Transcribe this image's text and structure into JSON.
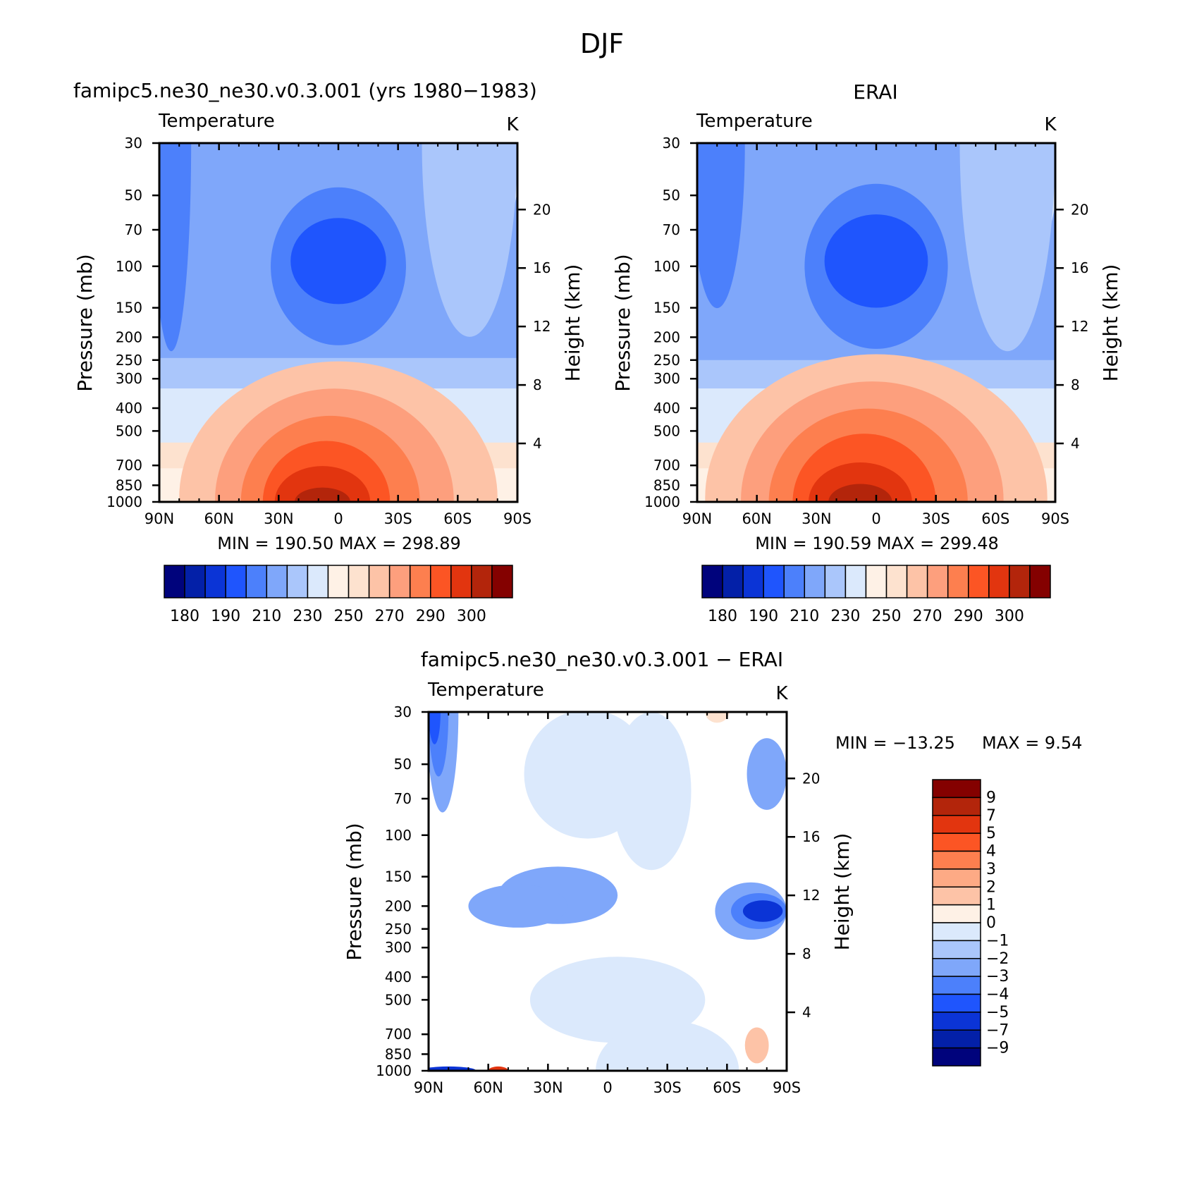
{
  "figure": {
    "season_title": "DJF"
  },
  "panels": {
    "model": {
      "title": "famipc5.ne30_ne30.v0.3.001 (yrs 1980−1983)",
      "left_label": "Temperature",
      "right_label": "K",
      "ylabel": "Pressure (mb)",
      "ylabel_right": "Height (km)",
      "stats": "MIN = 190.50   MAX = 298.89"
    },
    "obs": {
      "title": "ERAI",
      "left_label": "Temperature",
      "right_label": "K",
      "ylabel": "Pressure (mb)",
      "ylabel_right": "Height (km)",
      "stats": "MIN = 190.59   MAX = 299.48"
    },
    "diff": {
      "title": "famipc5.ne30_ne30.v0.3.001 − ERAI",
      "left_label": "Temperature",
      "right_label": "K",
      "ylabel": "Pressure (mb)",
      "ylabel_right": "Height (km)",
      "stats_min": "MIN = −13.25",
      "stats_max": "MAX =    9.54"
    }
  },
  "chart_data": [
    {
      "type": "heatmap",
      "name": "model",
      "title": "famipc5.ne30_ne30.v0.3.001 (yrs 1980−1983)",
      "subtitle_left": "Temperature",
      "units": "K",
      "xlabel": "",
      "ylabel": "Pressure (mb)",
      "ylabel_right": "Height (km)",
      "x_ticks": [
        "90N",
        "60N",
        "30N",
        "0",
        "30S",
        "60S",
        "90S"
      ],
      "x_values": [
        90,
        60,
        30,
        0,
        -30,
        -60,
        -90
      ],
      "y_ticks": [
        "30",
        "50",
        "70",
        "100",
        "150",
        "200",
        "250",
        "300",
        "400",
        "500",
        "700",
        "850",
        "1000"
      ],
      "y_values": [
        30,
        50,
        70,
        100,
        150,
        200,
        250,
        300,
        400,
        500,
        700,
        850,
        1000
      ],
      "y_scale": "log",
      "y_reversed": true,
      "ylim": [
        1000,
        30
      ],
      "height_ticks": [
        "4",
        "8",
        "12",
        "16",
        "20"
      ],
      "height_values": [
        4,
        8,
        12,
        16,
        20
      ],
      "min": 190.5,
      "max": 298.89,
      "colorbar_labels": [
        "180",
        "190",
        "210",
        "230",
        "250",
        "270",
        "290",
        "300"
      ],
      "stripes": [
        {
          "p": 1000,
          "color": "#fef1e6"
        },
        {
          "p": 720,
          "color": "#fde2cf"
        },
        {
          "p": 560,
          "color": "#dbe9fc"
        },
        {
          "p": 330,
          "color": "#aac6fb"
        },
        {
          "p": 245,
          "color": "#7fa7fa"
        }
      ],
      "blobs": [
        {
          "lat": 0,
          "p": 960,
          "w": 80,
          "h": 0.38,
          "color": "#fdc3a7",
          "peak": "low"
        },
        {
          "lat": 2,
          "p": 980,
          "w": 60,
          "h": 0.31,
          "color": "#fd9f7d",
          "peak": "low"
        },
        {
          "lat": 4,
          "p": 1000,
          "w": 45,
          "h": 0.24,
          "color": "#fd7f4f",
          "peak": "low"
        },
        {
          "lat": 6,
          "p": 1000,
          "w": 32,
          "h": 0.17,
          "color": "#fc5524",
          "peak": "low"
        },
        {
          "lat": 8,
          "p": 1000,
          "w": 24,
          "h": 0.1,
          "color": "#e2350f",
          "peak": "low"
        },
        {
          "lat": 8,
          "p": 1000,
          "w": 14,
          "h": 0.04,
          "color": "#b3250b",
          "peak": "low"
        },
        {
          "lat": 0,
          "p": 100,
          "w": 34,
          "h": 0.22,
          "color": "#4c80fb",
          "peak": "mid"
        },
        {
          "lat": 0,
          "p": 95,
          "w": 24,
          "h": 0.12,
          "color": "#1f55fd",
          "peak": "mid"
        },
        {
          "lat": 88,
          "p": 30,
          "w": 4,
          "h": 0.18,
          "color": "#1f55fd",
          "peak": "top"
        },
        {
          "lat": 84,
          "p": 30,
          "w": 10,
          "h": 0.58,
          "color": "#4c80fb",
          "peak": "top"
        },
        {
          "lat": -78,
          "p": 30,
          "w": 14,
          "h": 0.26,
          "color": "#dbe9fc",
          "peak": "top"
        },
        {
          "lat": -66,
          "p": 30,
          "w": 24,
          "h": 0.54,
          "color": "#aac6fb",
          "peak": "top"
        }
      ]
    },
    {
      "type": "heatmap",
      "name": "obs",
      "title": "ERAI",
      "subtitle_left": "Temperature",
      "units": "K",
      "xlabel": "",
      "ylabel": "Pressure (mb)",
      "ylabel_right": "Height (km)",
      "x_ticks": [
        "90N",
        "60N",
        "30N",
        "0",
        "30S",
        "60S",
        "90S"
      ],
      "x_values": [
        90,
        60,
        30,
        0,
        -30,
        -60,
        -90
      ],
      "y_ticks": [
        "30",
        "50",
        "70",
        "100",
        "150",
        "200",
        "250",
        "300",
        "400",
        "500",
        "700",
        "850",
        "1000"
      ],
      "y_values": [
        30,
        50,
        70,
        100,
        150,
        200,
        250,
        300,
        400,
        500,
        700,
        850,
        1000
      ],
      "y_scale": "log",
      "y_reversed": true,
      "ylim": [
        1000,
        30
      ],
      "height_ticks": [
        "4",
        "8",
        "12",
        "16",
        "20"
      ],
      "height_values": [
        4,
        8,
        12,
        16,
        20
      ],
      "min": 190.59,
      "max": 299.48,
      "colorbar_labels": [
        "180",
        "190",
        "210",
        "230",
        "250",
        "270",
        "290",
        "300"
      ],
      "stripes": [
        {
          "p": 1000,
          "color": "#fef1e6"
        },
        {
          "p": 720,
          "color": "#fde2cf"
        },
        {
          "p": 560,
          "color": "#dbe9fc"
        },
        {
          "p": 330,
          "color": "#aac6fb"
        },
        {
          "p": 250,
          "color": "#7fa7fa"
        }
      ],
      "blobs": [
        {
          "lat": 0,
          "p": 960,
          "w": 86,
          "h": 0.4,
          "color": "#fdc3a7",
          "peak": "low"
        },
        {
          "lat": 2,
          "p": 980,
          "w": 66,
          "h": 0.33,
          "color": "#fd9f7d",
          "peak": "low"
        },
        {
          "lat": 4,
          "p": 1000,
          "w": 50,
          "h": 0.26,
          "color": "#fd7f4f",
          "peak": "low"
        },
        {
          "lat": 6,
          "p": 1000,
          "w": 36,
          "h": 0.19,
          "color": "#fc5524",
          "peak": "low"
        },
        {
          "lat": 8,
          "p": 1000,
          "w": 26,
          "h": 0.11,
          "color": "#e2350f",
          "peak": "low"
        },
        {
          "lat": 8,
          "p": 1000,
          "w": 16,
          "h": 0.05,
          "color": "#b3250b",
          "peak": "low"
        },
        {
          "lat": 0,
          "p": 100,
          "w": 36,
          "h": 0.23,
          "color": "#4c80fb",
          "peak": "mid"
        },
        {
          "lat": 0,
          "p": 95,
          "w": 26,
          "h": 0.13,
          "color": "#1f55fd",
          "peak": "mid"
        },
        {
          "lat": 80,
          "p": 30,
          "w": 14,
          "h": 0.46,
          "color": "#4c80fb",
          "peak": "top"
        },
        {
          "lat": -80,
          "p": 30,
          "w": 12,
          "h": 0.3,
          "color": "#dbe9fc",
          "peak": "top"
        },
        {
          "lat": -66,
          "p": 30,
          "w": 24,
          "h": 0.58,
          "color": "#aac6fb",
          "peak": "top"
        }
      ]
    },
    {
      "type": "heatmap",
      "name": "diff",
      "title": "famipc5.ne30_ne30.v0.3.001 − ERAI",
      "subtitle_left": "Temperature",
      "units": "K",
      "xlabel": "",
      "ylabel": "Pressure (mb)",
      "ylabel_right": "Height (km)",
      "x_ticks": [
        "90N",
        "60N",
        "30N",
        "0",
        "30S",
        "60S",
        "90S"
      ],
      "x_values": [
        90,
        60,
        30,
        0,
        -30,
        -60,
        -90
      ],
      "y_ticks": [
        "30",
        "50",
        "70",
        "100",
        "150",
        "200",
        "250",
        "300",
        "400",
        "500",
        "700",
        "850",
        "1000"
      ],
      "y_values": [
        30,
        50,
        70,
        100,
        150,
        200,
        250,
        300,
        400,
        500,
        700,
        850,
        1000
      ],
      "y_scale": "log",
      "y_reversed": true,
      "ylim": [
        1000,
        30
      ],
      "height_ticks": [
        "4",
        "8",
        "12",
        "16",
        "20"
      ],
      "height_values": [
        4,
        8,
        12,
        16,
        20
      ],
      "min": -13.25,
      "max": 9.54,
      "colorbar_labels": [
        "9",
        "7",
        "5",
        "4",
        "3",
        "2",
        "1",
        "0",
        "−1",
        "−2",
        "−3",
        "−4",
        "−5",
        "−7",
        "−9"
      ],
      "stripes": [
        {
          "p": 30,
          "color": "#aac6fb"
        }
      ],
      "blobs": [
        {
          "lat": 10,
          "p": 55,
          "w": 32,
          "h": 0.18,
          "color": "#dbe9fc",
          "peak": "mid"
        },
        {
          "lat": -22,
          "p": 65,
          "w": 20,
          "h": 0.22,
          "color": "#dbe9fc",
          "peak": "mid"
        },
        {
          "lat": -5,
          "p": 500,
          "w": 44,
          "h": 0.12,
          "color": "#dbe9fc",
          "peak": "mid"
        },
        {
          "lat": -30,
          "p": 1000,
          "w": 36,
          "h": 0.14,
          "color": "#dbe9fc",
          "peak": "low"
        },
        {
          "lat": 83,
          "p": 30,
          "w": 8,
          "h": 0.28,
          "color": "#7fa7fa",
          "peak": "top"
        },
        {
          "lat": 85,
          "p": 30,
          "w": 5,
          "h": 0.18,
          "color": "#4c80fb",
          "peak": "top"
        },
        {
          "lat": 87,
          "p": 30,
          "w": 3,
          "h": 0.09,
          "color": "#1f55fd",
          "peak": "top"
        },
        {
          "lat": -80,
          "p": 55,
          "w": 10,
          "h": 0.1,
          "color": "#7fa7fa",
          "peak": "mid"
        },
        {
          "lat": 25,
          "p": 180,
          "w": 30,
          "h": 0.08,
          "color": "#7fa7fa",
          "peak": "mid"
        },
        {
          "lat": 45,
          "p": 200,
          "w": 25,
          "h": 0.06,
          "color": "#7fa7fa",
          "peak": "mid"
        },
        {
          "lat": -72,
          "p": 210,
          "w": 18,
          "h": 0.08,
          "color": "#7fa7fa",
          "peak": "mid"
        },
        {
          "lat": -76,
          "p": 210,
          "w": 14,
          "h": 0.05,
          "color": "#4c80fb",
          "peak": "mid"
        },
        {
          "lat": -78,
          "p": 210,
          "w": 10,
          "h": 0.03,
          "color": "#0b34d6",
          "peak": "mid"
        },
        {
          "lat": -75,
          "p": 780,
          "w": 6,
          "h": 0.05,
          "color": "#fdc3a7",
          "peak": "mid"
        },
        {
          "lat": -55,
          "p": 30,
          "w": 6,
          "h": 0.03,
          "color": "#fde2cf",
          "peak": "top"
        },
        {
          "lat": 80,
          "p": 1000,
          "w": 14,
          "h": 0.012,
          "color": "#0b34d6",
          "peak": "low"
        },
        {
          "lat": 55,
          "p": 1000,
          "w": 5,
          "h": 0.012,
          "color": "#e2350f",
          "peak": "low"
        }
      ]
    }
  ],
  "colorbars": {
    "absolute": [
      "#00037c",
      "#0320a8",
      "#0b34d6",
      "#1f55fd",
      "#4c80fb",
      "#7fa7fa",
      "#aac6fb",
      "#dbe9fc",
      "#fef1e6",
      "#fde2cf",
      "#fdc3a7",
      "#fd9f7d",
      "#fd7f4f",
      "#fc5524",
      "#e2350f",
      "#b3250b",
      "#840100"
    ],
    "difference": [
      "#840100",
      "#b3250b",
      "#e2350f",
      "#fc5524",
      "#fd7f4f",
      "#fdaa85",
      "#fdc3a7",
      "#fef1e6",
      "#dbe9fc",
      "#aac6fb",
      "#7fa7fa",
      "#4c80fb",
      "#1f55fd",
      "#0b34d6",
      "#0320a8",
      "#00037c"
    ]
  }
}
